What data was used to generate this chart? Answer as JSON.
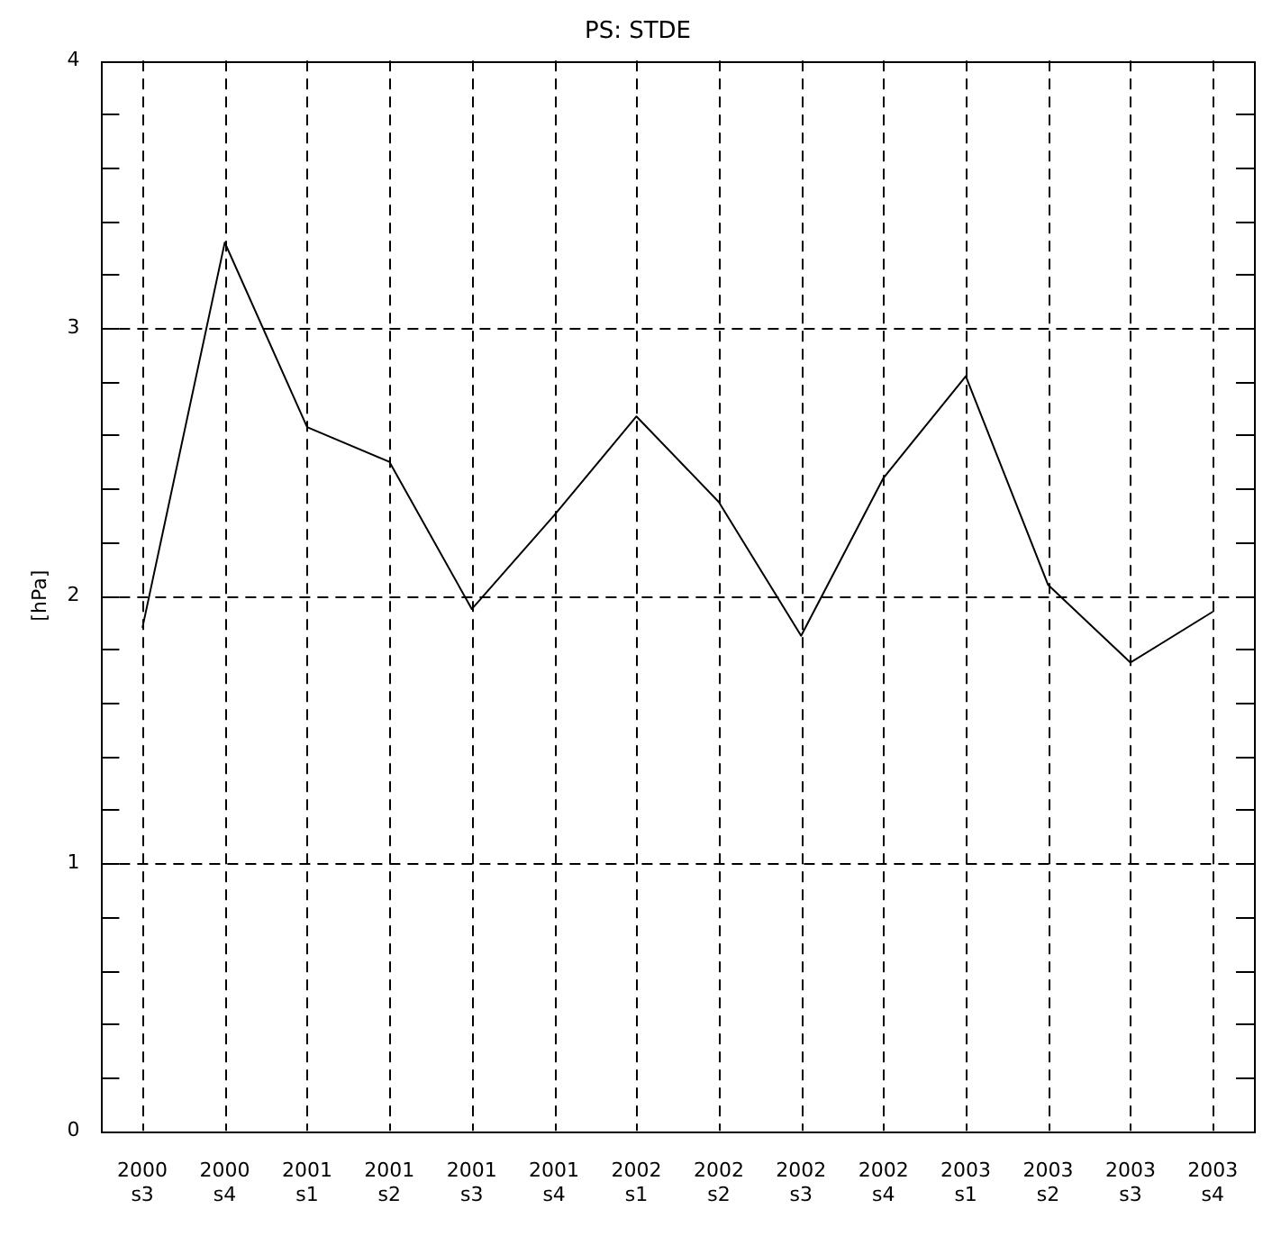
{
  "chart_data": {
    "type": "line",
    "title": "PS: STDE",
    "ylabel": "[hPa]",
    "categories": [
      "2000\ns3",
      "2000\ns4",
      "2001\ns1",
      "2001\ns2",
      "2001\ns3",
      "2001\ns4",
      "2002\ns1",
      "2002\ns2",
      "2002\ns3",
      "2002\ns4",
      "2003\ns1",
      "2003\ns2",
      "2003\ns3",
      "2003\ns4"
    ],
    "series": [
      {
        "color": "#000000",
        "values": [
          1.88,
          3.32,
          2.63,
          2.5,
          1.95,
          2.3,
          2.67,
          2.35,
          1.85,
          2.44,
          2.82,
          2.04,
          1.75,
          1.94
        ]
      }
    ],
    "ylim": [
      0,
      4
    ],
    "yticks": [
      0,
      {
        "value": 0.2,
        "label": null
      },
      {
        "value": 0.4,
        "label": null
      },
      {
        "value": 0.6,
        "label": null
      },
      {
        "value": 0.8,
        "label": null
      },
      1,
      {
        "value": 1.2,
        "label": null
      },
      {
        "value": 1.4,
        "label": null
      },
      {
        "value": 1.6,
        "label": null
      },
      {
        "value": 1.8,
        "label": null
      },
      2,
      {
        "value": 2.2,
        "label": null
      },
      {
        "value": 2.4,
        "label": null
      },
      {
        "value": 2.6,
        "label": null
      },
      {
        "value": 2.8,
        "label": null
      },
      3,
      {
        "value": 3.2,
        "label": null
      },
      {
        "value": 3.4,
        "label": null
      },
      {
        "value": 3.6,
        "label": null
      },
      {
        "value": 3.8,
        "label": null
      },
      4
    ],
    "grid": true,
    "marker": "none",
    "line_style": "solid",
    "legend": false
  }
}
